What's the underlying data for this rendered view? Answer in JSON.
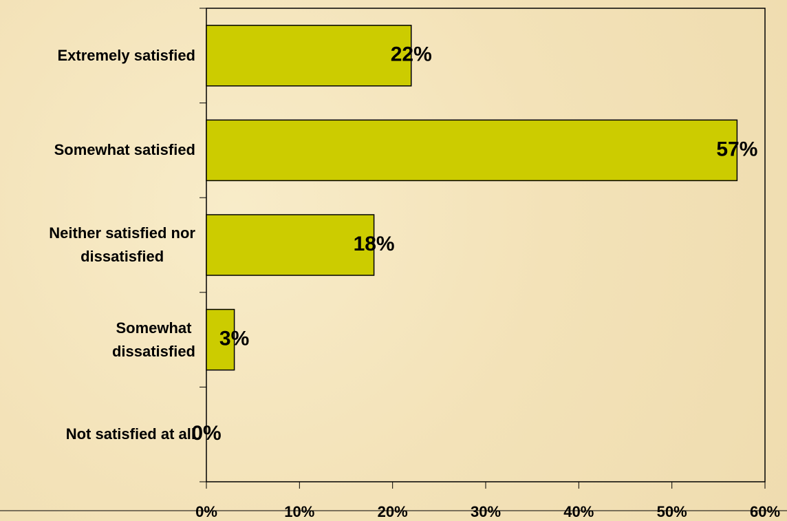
{
  "chart_data": {
    "type": "bar",
    "orientation": "horizontal",
    "categories": [
      "Extremely satisfied",
      "Somewhat satisfied",
      "Neither satisfied nor\ndissatisfied",
      "Somewhat\ndissatisfied",
      "Not satisfied at all"
    ],
    "values": [
      22,
      57,
      18,
      3,
      0
    ],
    "value_labels": [
      "22%",
      "57%",
      "18%",
      "3%",
      "0%"
    ],
    "color": "#cccc00",
    "xlim": [
      0,
      60
    ],
    "xticks": [
      {
        "value": 0,
        "label": "0%"
      },
      {
        "value": 10,
        "label": "10%"
      },
      {
        "value": 20,
        "label": "20%"
      },
      {
        "value": 30,
        "label": "30%"
      },
      {
        "value": 40,
        "label": "40%"
      },
      {
        "value": 50,
        "label": "50%"
      },
      {
        "value": 60,
        "label": "60%"
      }
    ],
    "grid": false
  }
}
